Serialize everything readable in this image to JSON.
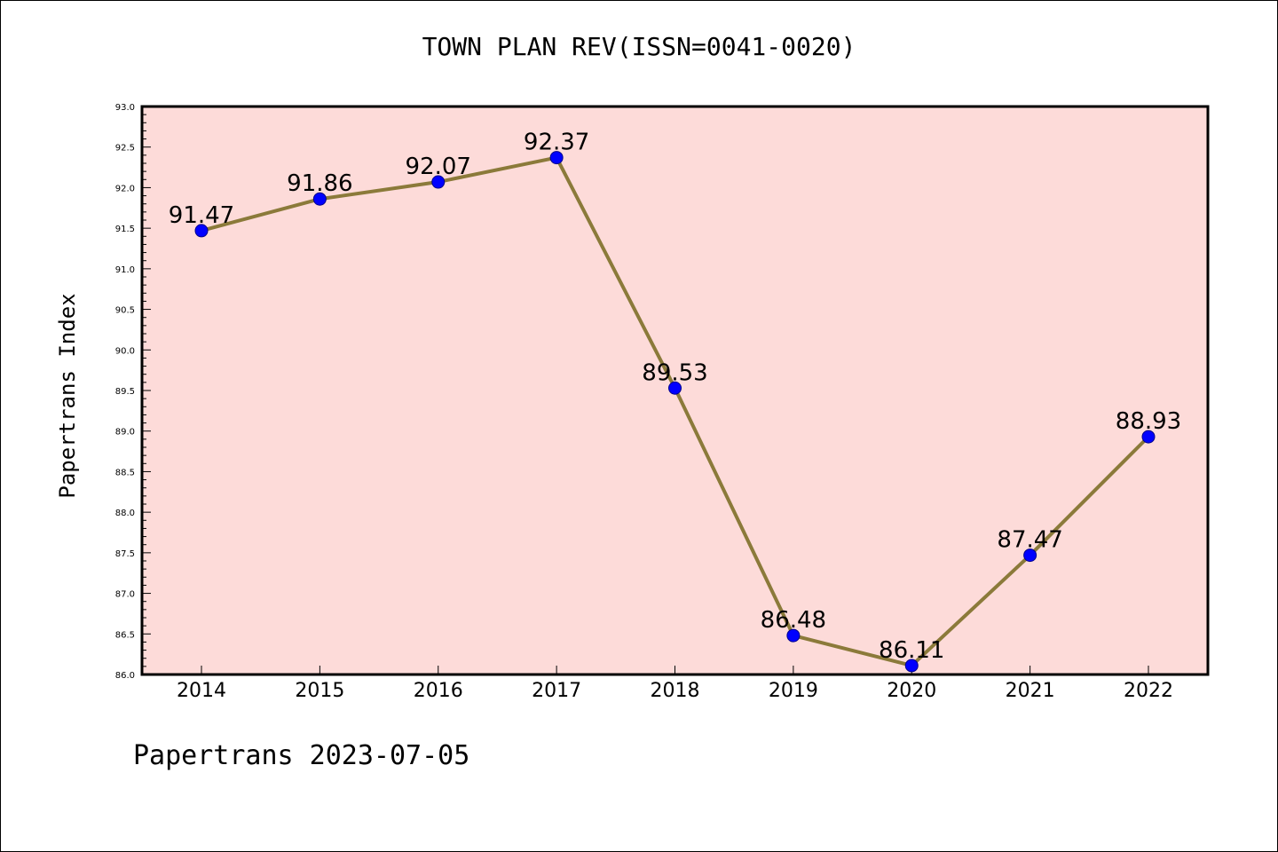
{
  "chart_data": {
    "type": "line",
    "title": "TOWN PLAN REV(ISSN=0041-0020)",
    "xlabel": "",
    "ylabel": "Papertrans Index",
    "categories": [
      "2014",
      "2015",
      "2016",
      "2017",
      "2018",
      "2019",
      "2020",
      "2021",
      "2022"
    ],
    "series": [
      {
        "values": [
          91.47,
          91.86,
          92.07,
          92.37,
          89.53,
          86.48,
          86.11,
          87.47,
          88.93
        ],
        "labels": [
          "91.47",
          "91.86",
          "92.07",
          "92.37",
          "89.53",
          "86.48",
          "86.11",
          "87.47",
          "88.93"
        ]
      }
    ],
    "ylim": [
      86.0,
      93.0
    ],
    "y_ticks": [
      "86.0",
      "86.5",
      "87.0",
      "87.5",
      "88.0",
      "88.5",
      "89.0",
      "89.5",
      "90.0",
      "90.5",
      "91.0",
      "91.5",
      "92.0",
      "92.5",
      "93.0"
    ],
    "grid": false,
    "colors": {
      "plot_background": "#fddbd9",
      "line": "#8b7a3a",
      "marker": "#0000ff"
    }
  },
  "footer": {
    "note": "Papertrans 2023-07-05"
  }
}
